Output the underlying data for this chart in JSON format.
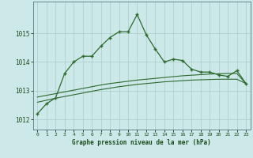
{
  "hours": [
    0,
    1,
    2,
    3,
    4,
    5,
    6,
    7,
    8,
    9,
    10,
    11,
    12,
    13,
    14,
    15,
    16,
    17,
    18,
    19,
    20,
    21,
    22,
    23
  ],
  "main_line": [
    1012.2,
    1012.55,
    1012.75,
    1013.6,
    1014.0,
    1014.2,
    1014.2,
    1014.55,
    1014.85,
    1015.05,
    1015.05,
    1015.65,
    1014.95,
    1014.45,
    1014.0,
    1014.1,
    1014.05,
    1013.75,
    1013.65,
    1013.65,
    1013.55,
    1013.5,
    1013.7,
    1013.25
  ],
  "trend_upper": [
    1012.78,
    1012.84,
    1012.9,
    1012.96,
    1013.02,
    1013.08,
    1013.14,
    1013.2,
    1013.25,
    1013.29,
    1013.33,
    1013.37,
    1013.4,
    1013.43,
    1013.46,
    1013.49,
    1013.52,
    1013.54,
    1013.56,
    1013.58,
    1013.59,
    1013.6,
    1013.6,
    1013.25
  ],
  "trend_lower": [
    1012.6,
    1012.67,
    1012.74,
    1012.8,
    1012.86,
    1012.92,
    1012.98,
    1013.04,
    1013.09,
    1013.14,
    1013.18,
    1013.22,
    1013.25,
    1013.28,
    1013.31,
    1013.33,
    1013.35,
    1013.37,
    1013.38,
    1013.39,
    1013.4,
    1013.4,
    1013.4,
    1013.25
  ],
  "line_color": "#2d6a2d",
  "bg_color": "#cce8e8",
  "grid_color": "#aacccc",
  "ylabel_ticks": [
    1012,
    1013,
    1014,
    1015
  ],
  "xlabel": "Graphe pression niveau de la mer (hPa)",
  "ylim": [
    1011.65,
    1016.1
  ],
  "xlim": [
    -0.5,
    23.5
  ],
  "tick_label_color": "#1a4a1a",
  "xlabel_color": "#1a4a1a"
}
